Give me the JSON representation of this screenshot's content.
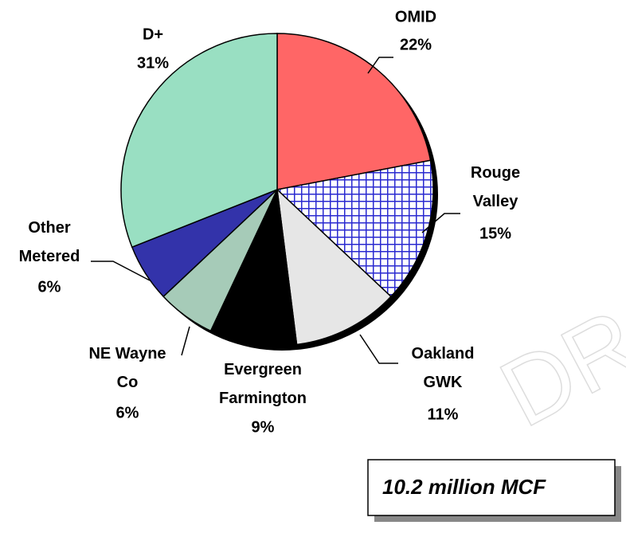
{
  "chart_data": {
    "type": "pie",
    "categories": [
      "OMID",
      "Rouge Valley",
      "Oakland GWK",
      "Evergreen Farmington",
      "NE Wayne Co",
      "Other Metered",
      "D+"
    ],
    "values": [
      22,
      15,
      11,
      9,
      6,
      6,
      31
    ],
    "value_labels": [
      "22%",
      "15%",
      "11%",
      "9%",
      "6%",
      "6%",
      "31%"
    ],
    "colors": [
      "#ff6666",
      "#2a2ad0",
      "#e6e6e6",
      "#000000",
      "#a6cbb8",
      "#3333aa",
      "#99dfc2"
    ],
    "patterns": [
      null,
      "crosshatch",
      null,
      null,
      null,
      null,
      null
    ],
    "annotation": "10.2 million MCF",
    "watermark": "DR"
  }
}
